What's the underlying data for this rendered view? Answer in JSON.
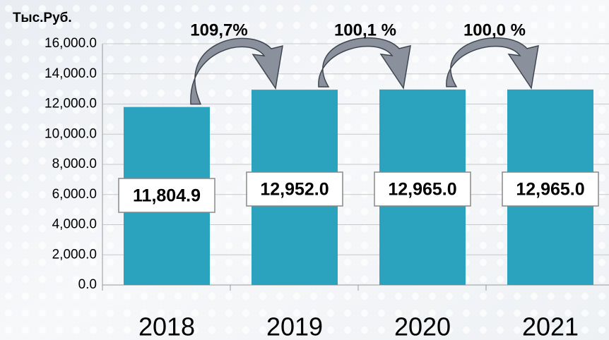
{
  "chart_data": {
    "type": "bar",
    "y_axis_label": "Тыс.Руб.",
    "categories": [
      "2018",
      "2019",
      "2020",
      "2021"
    ],
    "values": [
      11804.9,
      12952.0,
      12965.0,
      12965.0
    ],
    "value_labels": [
      "11,804.9",
      "12,952.0",
      "12,965.0",
      "12,965.0"
    ],
    "annotations": [
      "109,7%",
      "100,1 %",
      "100,0 %"
    ],
    "color": "#2ba2be",
    "ylim": [
      0,
      16000
    ],
    "yticks": [
      {
        "value": 0,
        "label": "0.0"
      },
      {
        "value": 2000,
        "label": "2,000.0"
      },
      {
        "value": 4000,
        "label": "4,000.0"
      },
      {
        "value": 6000,
        "label": "6,000.0"
      },
      {
        "value": 8000,
        "label": "8,000.0"
      },
      {
        "value": 10000,
        "label": "10,000.0"
      },
      {
        "value": 12000,
        "label": "12,000.0"
      },
      {
        "value": 14000,
        "label": "14,000.0"
      },
      {
        "value": 16000,
        "label": "16,000.0"
      }
    ],
    "grid": true
  }
}
